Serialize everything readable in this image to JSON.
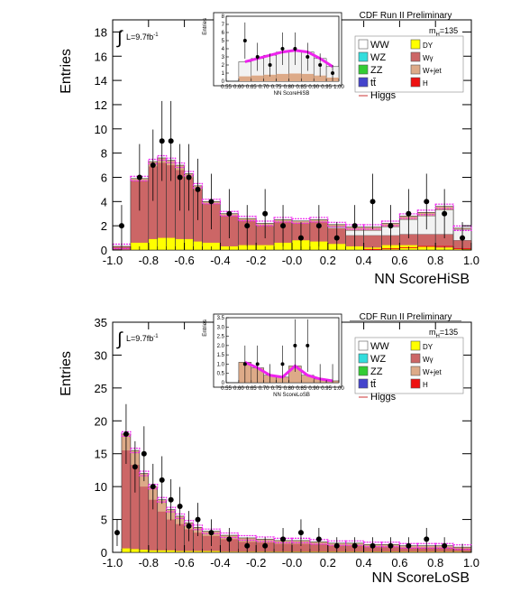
{
  "panels": [
    {
      "experiment_label": "CDF Run II Preliminary",
      "mass_label": "m",
      "mass_sub": "H",
      "mass_value": "=135",
      "lumi_prefix": "L=9.7fb",
      "lumi_sup": "-1",
      "integral_symbol": "∫",
      "legend": [
        {
          "name": "WW",
          "color": "#ffffff"
        },
        {
          "name": "DY",
          "color": "#ffff00"
        },
        {
          "name": "WZ",
          "color": "#33dddd"
        },
        {
          "name": "Wγ",
          "color": "#cc6666"
        },
        {
          "name": "ZZ",
          "color": "#33cc33"
        },
        {
          "name": "W+jet",
          "color": "#ddaa88"
        },
        {
          "name": "tt̄",
          "color": "#4444cc"
        },
        {
          "name": "H",
          "color": "#ee1111"
        },
        {
          "name": "Higgs",
          "color": "#cc3333"
        }
      ]
    },
    {
      "experiment_label": "CDF Run II Preliminary",
      "mass_label": "m",
      "mass_sub": "H",
      "mass_value": "=135",
      "lumi_prefix": "L=9.7fb",
      "lumi_sup": "-1",
      "integral_symbol": "∫",
      "legend": [
        {
          "name": "WW",
          "color": "#ffffff"
        },
        {
          "name": "DY",
          "color": "#ffff00"
        },
        {
          "name": "WZ",
          "color": "#33dddd"
        },
        {
          "name": "Wγ",
          "color": "#cc6666"
        },
        {
          "name": "ZZ",
          "color": "#33cc33"
        },
        {
          "name": "W+jet",
          "color": "#ddaa88"
        },
        {
          "name": "tt̄",
          "color": "#4444cc"
        },
        {
          "name": "H",
          "color": "#ee1111"
        },
        {
          "name": "Higgs",
          "color": "#cc3333"
        }
      ]
    }
  ],
  "chart_data": [
    {
      "type": "bar",
      "xlabel": "NN ScoreHiSB",
      "ylabel": "Entries",
      "xlim": [
        -1.0,
        1.0
      ],
      "ylim": [
        0,
        19
      ],
      "x_ticks": [
        "-1.0",
        "-0.8",
        "-0.6",
        "-0.4",
        "-0.2",
        "-0.0",
        "0.2",
        "0.4",
        "0.6",
        "0.8",
        "1.0"
      ],
      "y_ticks": [
        "0",
        "2",
        "4",
        "6",
        "8",
        "10",
        "12",
        "14",
        "16",
        "18"
      ],
      "bin_edges": [
        -1.0,
        -0.9,
        -0.8,
        -0.75,
        -0.7,
        -0.65,
        -0.6,
        -0.55,
        -0.5,
        -0.4,
        -0.3,
        -0.2,
        -0.1,
        0.0,
        0.1,
        0.2,
        0.3,
        0.4,
        0.5,
        0.6,
        0.7,
        0.8,
        0.9,
        1.0
      ],
      "total": [
        0.3,
        5.9,
        7.3,
        7.6,
        7.4,
        7.0,
        6.3,
        5.3,
        4.0,
        3.0,
        2.6,
        2.2,
        2.5,
        2.4,
        2.5,
        2.1,
        1.9,
        1.9,
        2.2,
        2.8,
        3.1,
        3.6,
        1.8
      ],
      "dy": [
        0.0,
        0.6,
        0.9,
        1.0,
        1.0,
        0.9,
        0.9,
        0.7,
        0.6,
        0.3,
        0.4,
        0.4,
        0.6,
        0.8,
        0.7,
        0.5,
        0.3,
        0.2,
        0.4,
        0.4,
        0.3,
        0.2,
        0.1
      ],
      "wjet": [
        0.0,
        0.2,
        0.4,
        0.4,
        0.4,
        0.4,
        0.3,
        0.3,
        0.2,
        0.2,
        0.2,
        0.2,
        0.2,
        0.2,
        0.2,
        0.2,
        0.3,
        0.3,
        0.3,
        0.3,
        0.3,
        0.3,
        0.1
      ],
      "diboson_top": [
        0.0,
        0.0,
        0.0,
        0.0,
        0.0,
        0.0,
        0.0,
        0.0,
        0.0,
        0.0,
        0.0,
        0.0,
        0.0,
        0.0,
        0.0,
        0.1,
        0.4,
        0.4,
        0.7,
        1.2,
        1.5,
        2.0,
        0.9
      ],
      "higgs": [
        0.0,
        0.0,
        0.0,
        0.0,
        0.0,
        0.0,
        0.0,
        0.0,
        0.0,
        0.0,
        0.0,
        0.0,
        0.0,
        0.0,
        0.0,
        0.0,
        0.0,
        0.05,
        0.1,
        0.2,
        0.3,
        0.3,
        0.1
      ],
      "data": [
        [
          -0.95,
          2.0
        ],
        [
          -0.85,
          6.0
        ],
        [
          -0.775,
          7.0
        ],
        [
          -0.725,
          9.0
        ],
        [
          -0.675,
          9.0
        ],
        [
          -0.625,
          6.0
        ],
        [
          -0.575,
          6.0
        ],
        [
          -0.525,
          5.0
        ],
        [
          -0.45,
          4.0
        ],
        [
          -0.35,
          3.0
        ],
        [
          -0.25,
          2.0
        ],
        [
          -0.15,
          3.0
        ],
        [
          -0.05,
          2.0
        ],
        [
          0.05,
          1.0
        ],
        [
          0.15,
          2.0
        ],
        [
          0.25,
          1.0
        ],
        [
          0.35,
          2.0
        ],
        [
          0.45,
          4.0
        ],
        [
          0.55,
          2.0
        ],
        [
          0.65,
          3.0
        ],
        [
          0.75,
          4.0
        ],
        [
          0.85,
          3.0
        ],
        [
          0.95,
          1.0
        ]
      ],
      "inset": {
        "xlabel": "NN ScoreHiSB",
        "ylabel": "Entries",
        "xlim": [
          0.55,
          1.0
        ],
        "ylim": [
          0,
          8
        ],
        "x_ticks": [
          "0.55",
          "0.60",
          "0.65",
          "0.70",
          "0.75",
          "0.80",
          "0.85",
          "0.90",
          "0.95",
          "1.00"
        ],
        "y_ticks": [
          "0",
          "1",
          "2",
          "3",
          "4",
          "5",
          "6",
          "7",
          "8"
        ],
        "bin_edges": [
          0.6,
          0.65,
          0.7,
          0.75,
          0.8,
          0.85,
          0.9,
          0.95,
          1.0
        ],
        "total": [
          2.4,
          2.8,
          3.2,
          3.6,
          3.8,
          3.6,
          2.8,
          1.8
        ],
        "data": [
          [
            0.625,
            5.0
          ],
          [
            0.675,
            3.0
          ],
          [
            0.725,
            2.0
          ],
          [
            0.775,
            4.0
          ],
          [
            0.825,
            4.0
          ],
          [
            0.875,
            3.0
          ],
          [
            0.925,
            2.0
          ],
          [
            0.975,
            1.0
          ]
        ]
      }
    },
    {
      "type": "bar",
      "xlabel": "NN ScoreLoSB",
      "ylabel": "Entries",
      "xlim": [
        -1.0,
        1.0
      ],
      "ylim": [
        0,
        35
      ],
      "x_ticks": [
        "-1.0",
        "-0.8",
        "-0.6",
        "-0.4",
        "-0.2",
        "-0.0",
        "0.2",
        "0.4",
        "0.6",
        "0.8",
        "1.0"
      ],
      "y_ticks": [
        "0",
        "5",
        "10",
        "15",
        "20",
        "25",
        "30",
        "35"
      ],
      "bin_edges": [
        -1.0,
        -0.95,
        -0.9,
        -0.85,
        -0.8,
        -0.75,
        -0.7,
        -0.65,
        -0.6,
        -0.55,
        -0.5,
        -0.4,
        -0.3,
        -0.2,
        -0.1,
        0.0,
        0.1,
        0.2,
        0.3,
        0.4,
        0.5,
        0.6,
        0.7,
        0.8,
        0.9,
        1.0
      ],
      "total": [
        0.0,
        18.0,
        15.5,
        12.0,
        10.0,
        8.0,
        6.5,
        5.5,
        4.5,
        3.8,
        3.2,
        2.6,
        2.2,
        2.0,
        1.8,
        1.8,
        1.6,
        1.4,
        1.4,
        1.2,
        1.2,
        1.0,
        1.0,
        1.0,
        0.8
      ],
      "dy": [
        0.0,
        0.6,
        0.5,
        0.4,
        0.3,
        0.3,
        0.3,
        0.2,
        0.2,
        0.2,
        0.2,
        0.1,
        0.1,
        0.1,
        0.1,
        0.1,
        0.1,
        0.1,
        0.1,
        0.1,
        0.1,
        0.1,
        0.1,
        0.1,
        0.1
      ],
      "wjet": [
        0.0,
        2.5,
        2.2,
        2.0,
        2.0,
        1.8,
        1.5,
        1.2,
        1.0,
        0.8,
        0.7,
        0.6,
        0.6,
        0.5,
        0.5,
        0.5,
        0.4,
        0.4,
        0.4,
        0.4,
        0.4,
        0.3,
        0.3,
        0.3,
        0.2
      ],
      "diboson_top": [
        0.0,
        0.0,
        0.0,
        0.0,
        0.0,
        0.0,
        0.0,
        0.0,
        0.0,
        0.0,
        0.0,
        0.0,
        0.0,
        0.0,
        0.0,
        0.0,
        0.0,
        0.0,
        0.0,
        0.0,
        0.0,
        0.0,
        0.0,
        0.0,
        0.0
      ],
      "higgs": [
        0.0,
        0.0,
        0.0,
        0.0,
        0.0,
        0.0,
        0.0,
        0.0,
        0.0,
        0.0,
        0.0,
        0.0,
        0.0,
        0.0,
        0.0,
        0.0,
        0.0,
        0.0,
        0.0,
        0.0,
        0.0,
        0.0,
        0.0,
        0.0,
        0.0
      ],
      "data": [
        [
          -0.975,
          3.0
        ],
        [
          -0.925,
          18.0
        ],
        [
          -0.875,
          13.0
        ],
        [
          -0.825,
          15.0
        ],
        [
          -0.775,
          10.0
        ],
        [
          -0.725,
          11.0
        ],
        [
          -0.675,
          8.0
        ],
        [
          -0.625,
          7.0
        ],
        [
          -0.575,
          4.0
        ],
        [
          -0.525,
          5.0
        ],
        [
          -0.45,
          3.0
        ],
        [
          -0.35,
          2.0
        ],
        [
          -0.25,
          1.0
        ],
        [
          -0.15,
          1.0
        ],
        [
          -0.05,
          2.0
        ],
        [
          0.05,
          3.0
        ],
        [
          0.15,
          2.0
        ],
        [
          0.25,
          1.0
        ],
        [
          0.35,
          1.0
        ],
        [
          0.45,
          1.0
        ],
        [
          0.55,
          1.0
        ],
        [
          0.65,
          1.0
        ],
        [
          0.75,
          2.0
        ],
        [
          0.85,
          1.0
        ],
        [
          0.95,
          0.0
        ]
      ],
      "inset": {
        "xlabel": "NN ScoreLoSB",
        "ylabel": "Entries",
        "xlim": [
          0.55,
          1.0
        ],
        "ylim": [
          0,
          3.5
        ],
        "x_ticks": [
          "0.55",
          "0.60",
          "0.65",
          "0.70",
          "0.75",
          "0.80",
          "0.85",
          "0.90",
          "0.95",
          "1.00"
        ],
        "y_ticks": [
          "0",
          "0.5",
          "1.0",
          "1.5",
          "2.0",
          "2.5",
          "3.0",
          "3.5"
        ],
        "bin_edges": [
          0.6,
          0.65,
          0.7,
          0.75,
          0.8,
          0.85,
          0.9,
          0.95,
          1.0
        ],
        "total": [
          1.1,
          0.8,
          0.4,
          0.3,
          0.9,
          0.4,
          0.2,
          0.1
        ],
        "data": [
          [
            0.625,
            1.0
          ],
          [
            0.675,
            1.0
          ],
          [
            0.725,
            0.0
          ],
          [
            0.775,
            1.0
          ],
          [
            0.825,
            2.0
          ],
          [
            0.875,
            2.0
          ],
          [
            0.925,
            0.0
          ],
          [
            0.975,
            0.0
          ]
        ]
      }
    }
  ]
}
